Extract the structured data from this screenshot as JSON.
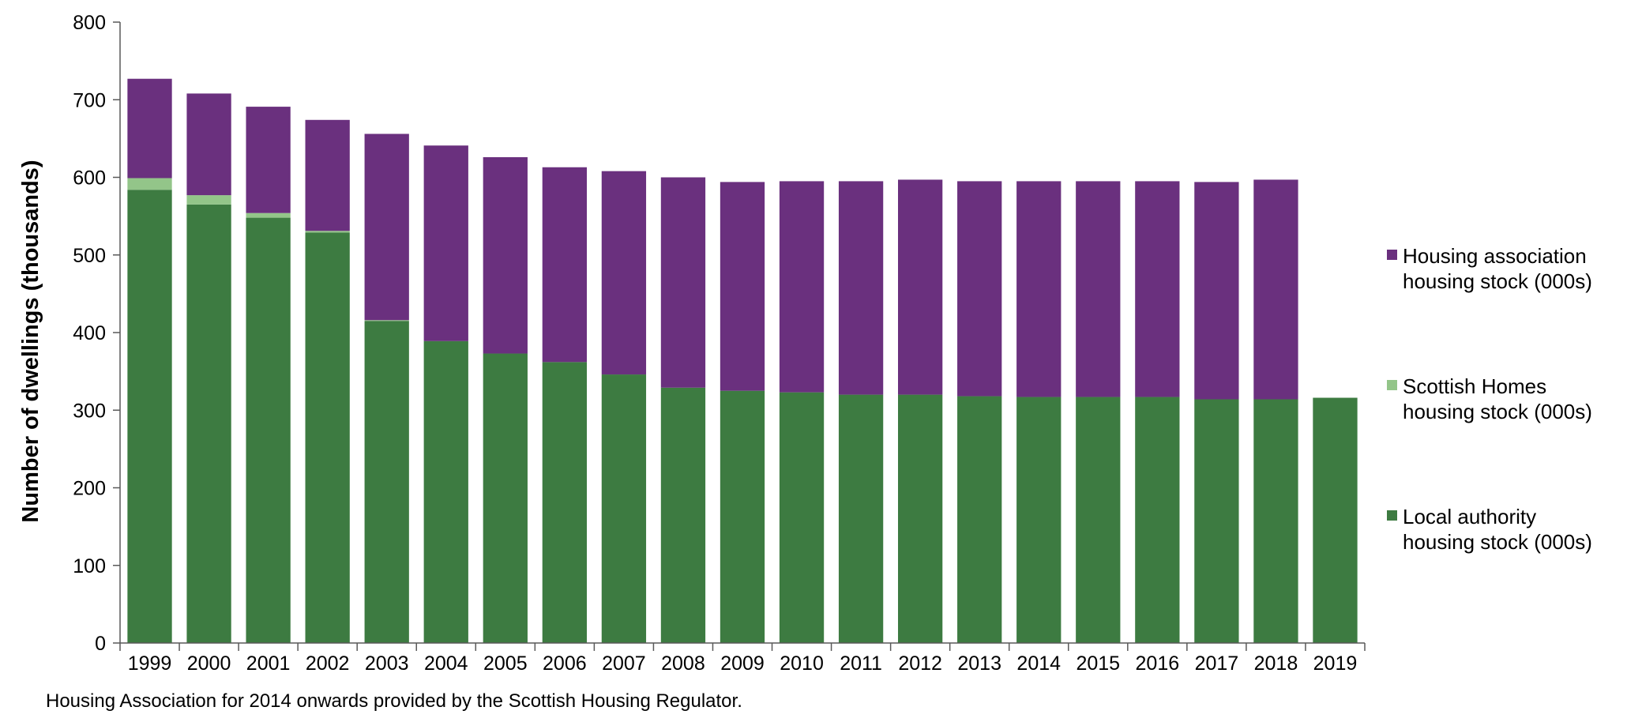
{
  "chart_data": {
    "type": "bar",
    "stacked": true,
    "title": "",
    "ylabel": "Number of dwellings (thousands)",
    "xlabel": "",
    "ylim": [
      0,
      800
    ],
    "yticks": [
      0,
      100,
      200,
      300,
      400,
      500,
      600,
      700,
      800
    ],
    "grid": false,
    "legend_position": "right",
    "categories": [
      "1999",
      "2000",
      "2001",
      "2002",
      "2003",
      "2004",
      "2005",
      "2006",
      "2007",
      "2008",
      "2009",
      "2010",
      "2011",
      "2012",
      "2013",
      "2014",
      "2015",
      "2016",
      "2017",
      "2018",
      "2019"
    ],
    "series": [
      {
        "name": "Local authority housing stock (000s)",
        "legend_lines": [
          " Local authority",
          "housing stock (000s)"
        ],
        "color": "#3d7b41",
        "values": [
          584,
          565,
          548,
          529,
          415,
          389,
          373,
          362,
          346,
          329,
          325,
          323,
          320,
          320,
          318,
          317,
          317,
          317,
          314,
          314,
          316
        ]
      },
      {
        "name": "Scottish Homes housing stock (000s)",
        "legend_lines": [
          "Scottish Homes",
          "housing stock (000s)"
        ],
        "color": "#93c589",
        "values": [
          15,
          12,
          6,
          2,
          1,
          0,
          0,
          0,
          0,
          0,
          0,
          0,
          0,
          0,
          0,
          0,
          0,
          0,
          0,
          0,
          0
        ]
      },
      {
        "name": "Housing association housing stock (000s)",
        "legend_lines": [
          "Housing association",
          "housing stock (000s)"
        ],
        "color": "#6a307e",
        "values": [
          128,
          131,
          137,
          143,
          240,
          252,
          253,
          251,
          262,
          271,
          269,
          272,
          275,
          277,
          277,
          278,
          278,
          278,
          280,
          283,
          0
        ]
      }
    ]
  },
  "note": "Housing Association for 2014 onwards provided by the Scottish Housing Regulator."
}
